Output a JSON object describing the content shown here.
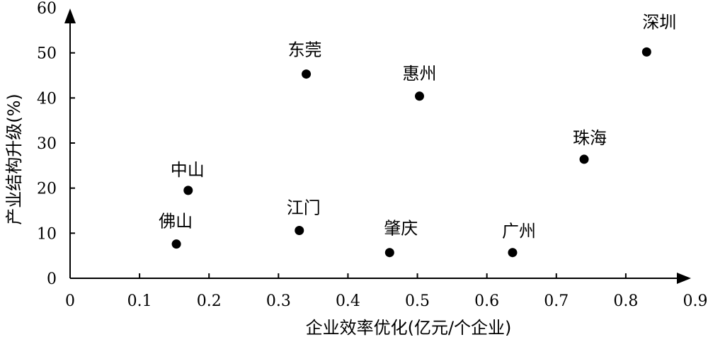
{
  "chart_data": {
    "type": "scatter",
    "title": "",
    "xlabel": "企业效率优化(亿元/个企业)",
    "ylabel": "产业结构升级(%)",
    "xlim": [
      0,
      0.9
    ],
    "ylim": [
      0,
      60
    ],
    "x_ticks": [
      "0",
      "0.1",
      "0.2",
      "0.3",
      "0.4",
      "0.5",
      "0.6",
      "0.7",
      "0.8",
      "0.9"
    ],
    "y_ticks": [
      "0",
      "10",
      "20",
      "30",
      "40",
      "50",
      "60"
    ],
    "grid": false,
    "points": [
      {
        "label": "深圳",
        "x": 0.83,
        "y": 50.2
      },
      {
        "label": "东莞",
        "x": 0.34,
        "y": 45.3
      },
      {
        "label": "惠州",
        "x": 0.503,
        "y": 40.4
      },
      {
        "label": "珠海",
        "x": 0.74,
        "y": 26.4
      },
      {
        "label": "中山",
        "x": 0.17,
        "y": 19.5
      },
      {
        "label": "江门",
        "x": 0.33,
        "y": 10.6
      },
      {
        "label": "佛山",
        "x": 0.153,
        "y": 7.6
      },
      {
        "label": "肇庆",
        "x": 0.46,
        "y": 5.7
      },
      {
        "label": "广州",
        "x": 0.637,
        "y": 5.7
      }
    ]
  }
}
